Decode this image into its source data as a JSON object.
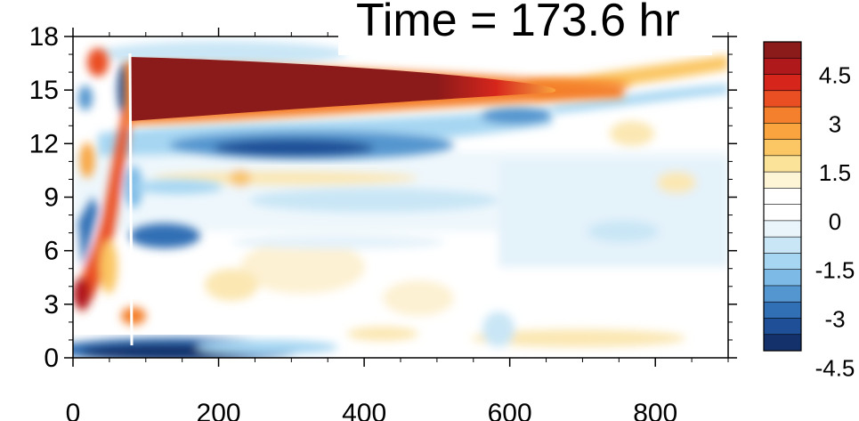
{
  "chart_data": {
    "type": "heatmap",
    "title": "Time = 173.6 hr",
    "xlabel": "",
    "ylabel": "",
    "xlim": [
      0,
      900
    ],
    "ylim": [
      0,
      18
    ],
    "x_ticks": [
      "0",
      "200",
      "400",
      "600",
      "800"
    ],
    "y_ticks": [
      "0",
      "3",
      "6",
      "9",
      "12",
      "15",
      "18"
    ],
    "colorbar": {
      "tick_labels": [
        "4.5",
        "3",
        "1.5",
        "0",
        "-1.5",
        "-3",
        "-4.5"
      ],
      "colors_top_to_bottom": [
        "#8b1a1a",
        "#b0191c",
        "#d6261c",
        "#ea4e23",
        "#f47f2c",
        "#f9a43e",
        "#fbc664",
        "#fce39a",
        "#fef4d6",
        "#ffffff",
        "#ffffff",
        "#e9f5fb",
        "#c9e6f6",
        "#a6d6f2",
        "#7dbbe6",
        "#5496cf",
        "#3170b5",
        "#1f4f97",
        "#15316c"
      ]
    },
    "features": [
      {
        "label": "positive jet core",
        "x_range": [
          80,
          620
        ],
        "y_center": 15,
        "value": 5
      },
      {
        "label": "negative band",
        "x_range": [
          120,
          600
        ],
        "y_center": 11.8,
        "value": -4
      },
      {
        "label": "negative surface band",
        "x_range": [
          70,
          320
        ],
        "y_center": 0.5,
        "value": -5
      },
      {
        "label": "positive upper band",
        "x_range": [
          600,
          900
        ],
        "y_center": 16,
        "value": 2
      }
    ]
  }
}
